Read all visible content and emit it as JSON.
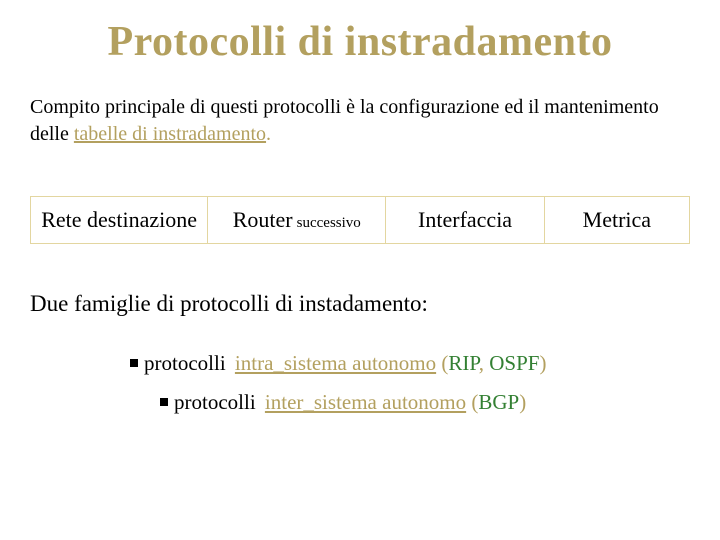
{
  "title": "Protocolli di instradamento",
  "intro_part1": "Compito principale di questi protocolli  è la configurazione ed il mantenimento  delle ",
  "intro_key": "tabelle di instradamento",
  "intro_dot": ".",
  "table": {
    "c1": "Rete destinazione",
    "c2_main": "Router",
    "c2_sub": "successivo",
    "c3": "Interfaccia",
    "c4": "Metrica"
  },
  "intro2": "Due famiglie di protocolli di instadamento:",
  "bullets": {
    "b1_pre": "protocolli ",
    "b1_term": "intra_sistema autonomo",
    "b1_space": " ",
    "b1_po": "(",
    "b1_rip": "RIP",
    "b1_comma": ", ",
    "b1_ospf": "OSPF",
    "b1_pc": ")",
    "b2_pre": " protocolli ",
    "b2_term": "inter_sistema autonomo",
    "b2_space": " ",
    "b2_po": "(",
    "b2_bgp": "BGP",
    "b2_pc": ")"
  },
  "colors": {
    "gold": "#b3a05f",
    "table_border": "#e3d6a0",
    "green": "#338033",
    "text": "#000000",
    "bg": "#ffffff"
  },
  "fonts": {
    "title_size": 42,
    "body_size": 20,
    "table_size": 22,
    "intro2_size": 23,
    "bullet_size": 21,
    "sub_size": 15
  }
}
